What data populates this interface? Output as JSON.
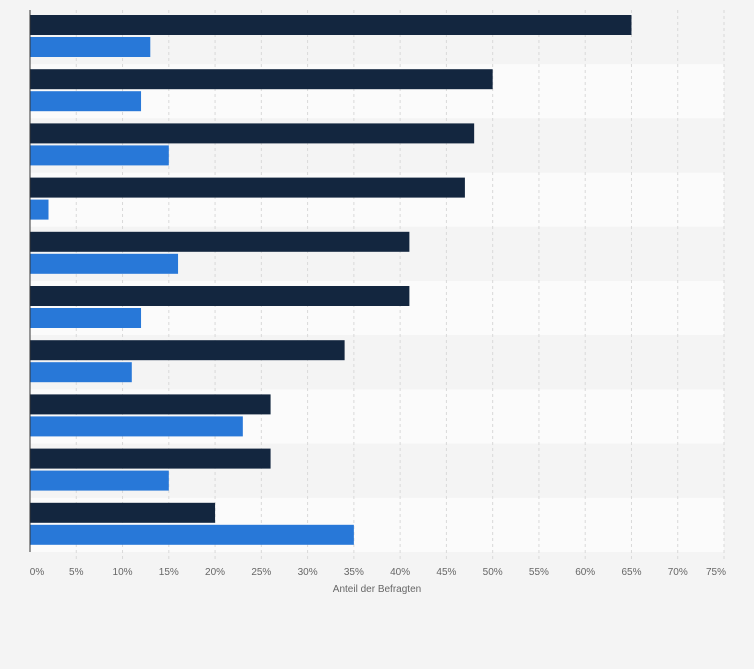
{
  "chart_data": {
    "type": "bar",
    "orientation": "horizontal",
    "categories": [
      "",
      "",
      "",
      "",
      "",
      "",
      "",
      "",
      "",
      ""
    ],
    "series": [
      {
        "values": [
          65,
          50,
          48,
          47,
          41,
          41,
          34,
          26,
          26,
          20
        ]
      },
      {
        "values": [
          13,
          12,
          15,
          2,
          16,
          12,
          11,
          23,
          15,
          35
        ]
      }
    ],
    "colors": {
      "series_1": "#13263f",
      "series_2": "#2878d8",
      "band_light": "#fbfbfb",
      "band_dark": "#f4f4f4"
    },
    "xlabel": "Anteil der Befragten",
    "xlim": [
      0,
      75
    ],
    "ticks": [
      "0%",
      "5%",
      "10%",
      "15%",
      "20%",
      "25%",
      "30%",
      "35%",
      "40%",
      "45%",
      "50%",
      "55%",
      "60%",
      "65%",
      "70%",
      "75%"
    ],
    "grid": true,
    "legend": "none"
  }
}
